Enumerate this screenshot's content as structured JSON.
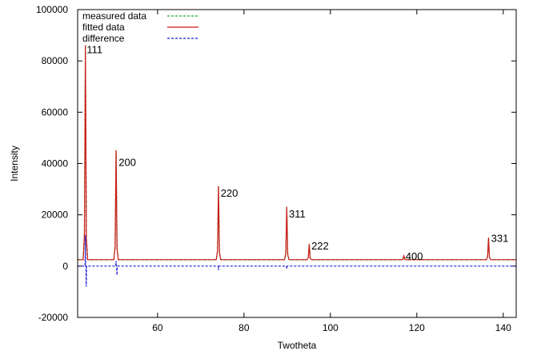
{
  "chart_data": {
    "type": "line",
    "xlabel": "Twotheta",
    "ylabel": "Intensity",
    "xlim": [
      41.5,
      143
    ],
    "ylim": [
      -20000,
      100000
    ],
    "x_ticks": [
      60,
      80,
      100,
      120,
      140
    ],
    "y_ticks": [
      -20000,
      0,
      20000,
      40000,
      60000,
      80000,
      100000
    ],
    "legend_position": "top-left",
    "baseline_fitted": 2500,
    "baseline_difference": 0,
    "series": [
      {
        "name": "measured data",
        "color": "#22b022",
        "style": "dashed",
        "peaks": [
          {
            "x": 43.3,
            "y": 86000
          },
          {
            "x": 50.4,
            "y": 45000
          },
          {
            "x": 74.1,
            "y": 31000
          },
          {
            "x": 89.9,
            "y": 23000
          },
          {
            "x": 95.1,
            "y": 8500
          },
          {
            "x": 117.0,
            "y": 4000
          },
          {
            "x": 136.6,
            "y": 11000
          }
        ]
      },
      {
        "name": "fitted data",
        "color": "#d01818",
        "style": "solid",
        "peaks": [
          {
            "x": 43.3,
            "y": 86000
          },
          {
            "x": 50.4,
            "y": 45000
          },
          {
            "x": 74.1,
            "y": 31000
          },
          {
            "x": 89.9,
            "y": 23000
          },
          {
            "x": 95.1,
            "y": 8500
          },
          {
            "x": 117.0,
            "y": 4000
          },
          {
            "x": 136.6,
            "y": 11000
          }
        ]
      },
      {
        "name": "difference",
        "color": "#1a1ad0",
        "style": "dashed",
        "spikes": [
          {
            "x": 43.3,
            "y": 12000
          },
          {
            "x": 43.5,
            "y": -8000
          },
          {
            "x": 50.4,
            "y": 2000
          },
          {
            "x": 50.6,
            "y": -3500
          },
          {
            "x": 74.1,
            "y": -1500
          },
          {
            "x": 89.9,
            "y": -1000
          }
        ]
      }
    ],
    "annotations": [
      {
        "text": "111",
        "x": 43.6,
        "y": 83000
      },
      {
        "text": "200",
        "x": 51.0,
        "y": 39000
      },
      {
        "text": "220",
        "x": 74.6,
        "y": 27000
      },
      {
        "text": "311",
        "x": 90.4,
        "y": 19000
      },
      {
        "text": "222",
        "x": 95.6,
        "y": 6500
      },
      {
        "text": "400",
        "x": 117.4,
        "y": 2500
      },
      {
        "text": "331",
        "x": 137.2,
        "y": 9500
      }
    ]
  }
}
